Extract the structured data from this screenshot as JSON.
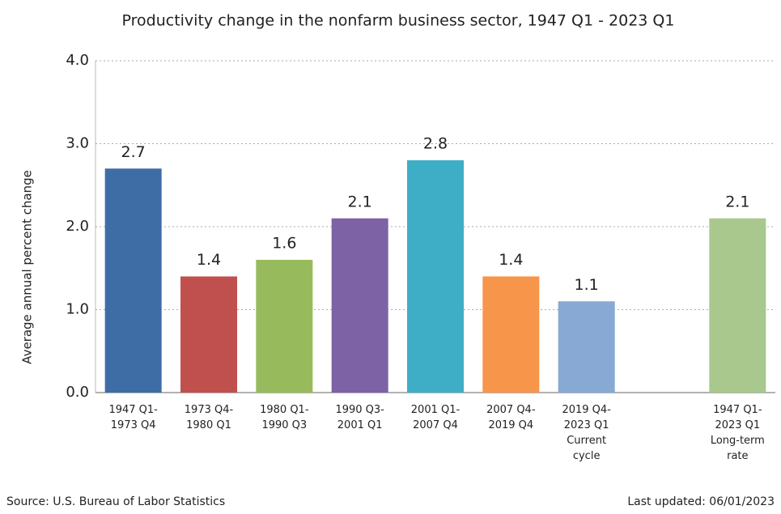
{
  "chart_data": {
    "type": "bar",
    "title": "Productivity change in the nonfarm business sector, 1947 Q1 - 2023 Q1",
    "y_label": "Average annual percent change",
    "categories": [
      "1947 Q1-\n1973 Q4",
      "1973 Q4-\n1980 Q1",
      "1980 Q1-\n1990 Q3",
      "1990 Q3-\n2001 Q1",
      "2001 Q1-\n2007 Q4",
      "2007 Q4-\n2019 Q4",
      "2019 Q4-\n2023 Q1\nCurrent\ncycle",
      null,
      "1947 Q1-\n2023 Q1\nLong-term\nrate"
    ],
    "values": [
      2.7,
      1.4,
      1.6,
      2.1,
      2.8,
      1.4,
      1.1,
      null,
      2.1
    ],
    "colors": [
      "#3e6da6",
      "#c0504d",
      "#97bb5c",
      "#7d62a6",
      "#3eaec6",
      "#f7954a",
      "#87a9d3",
      null,
      "#a8c88e"
    ],
    "ylim": [
      0,
      4
    ],
    "yticks": [
      {
        "value": 0,
        "label": "0.0"
      },
      {
        "value": 1,
        "label": "1.0"
      },
      {
        "value": 2,
        "label": "2.0"
      },
      {
        "value": 3,
        "label": "3.0"
      },
      {
        "value": 4,
        "label": "4.0"
      }
    ],
    "grid": true,
    "source": "Source: U.S. Bureau of Labor Statistics",
    "updated": "Last updated: 06/01/2023"
  }
}
